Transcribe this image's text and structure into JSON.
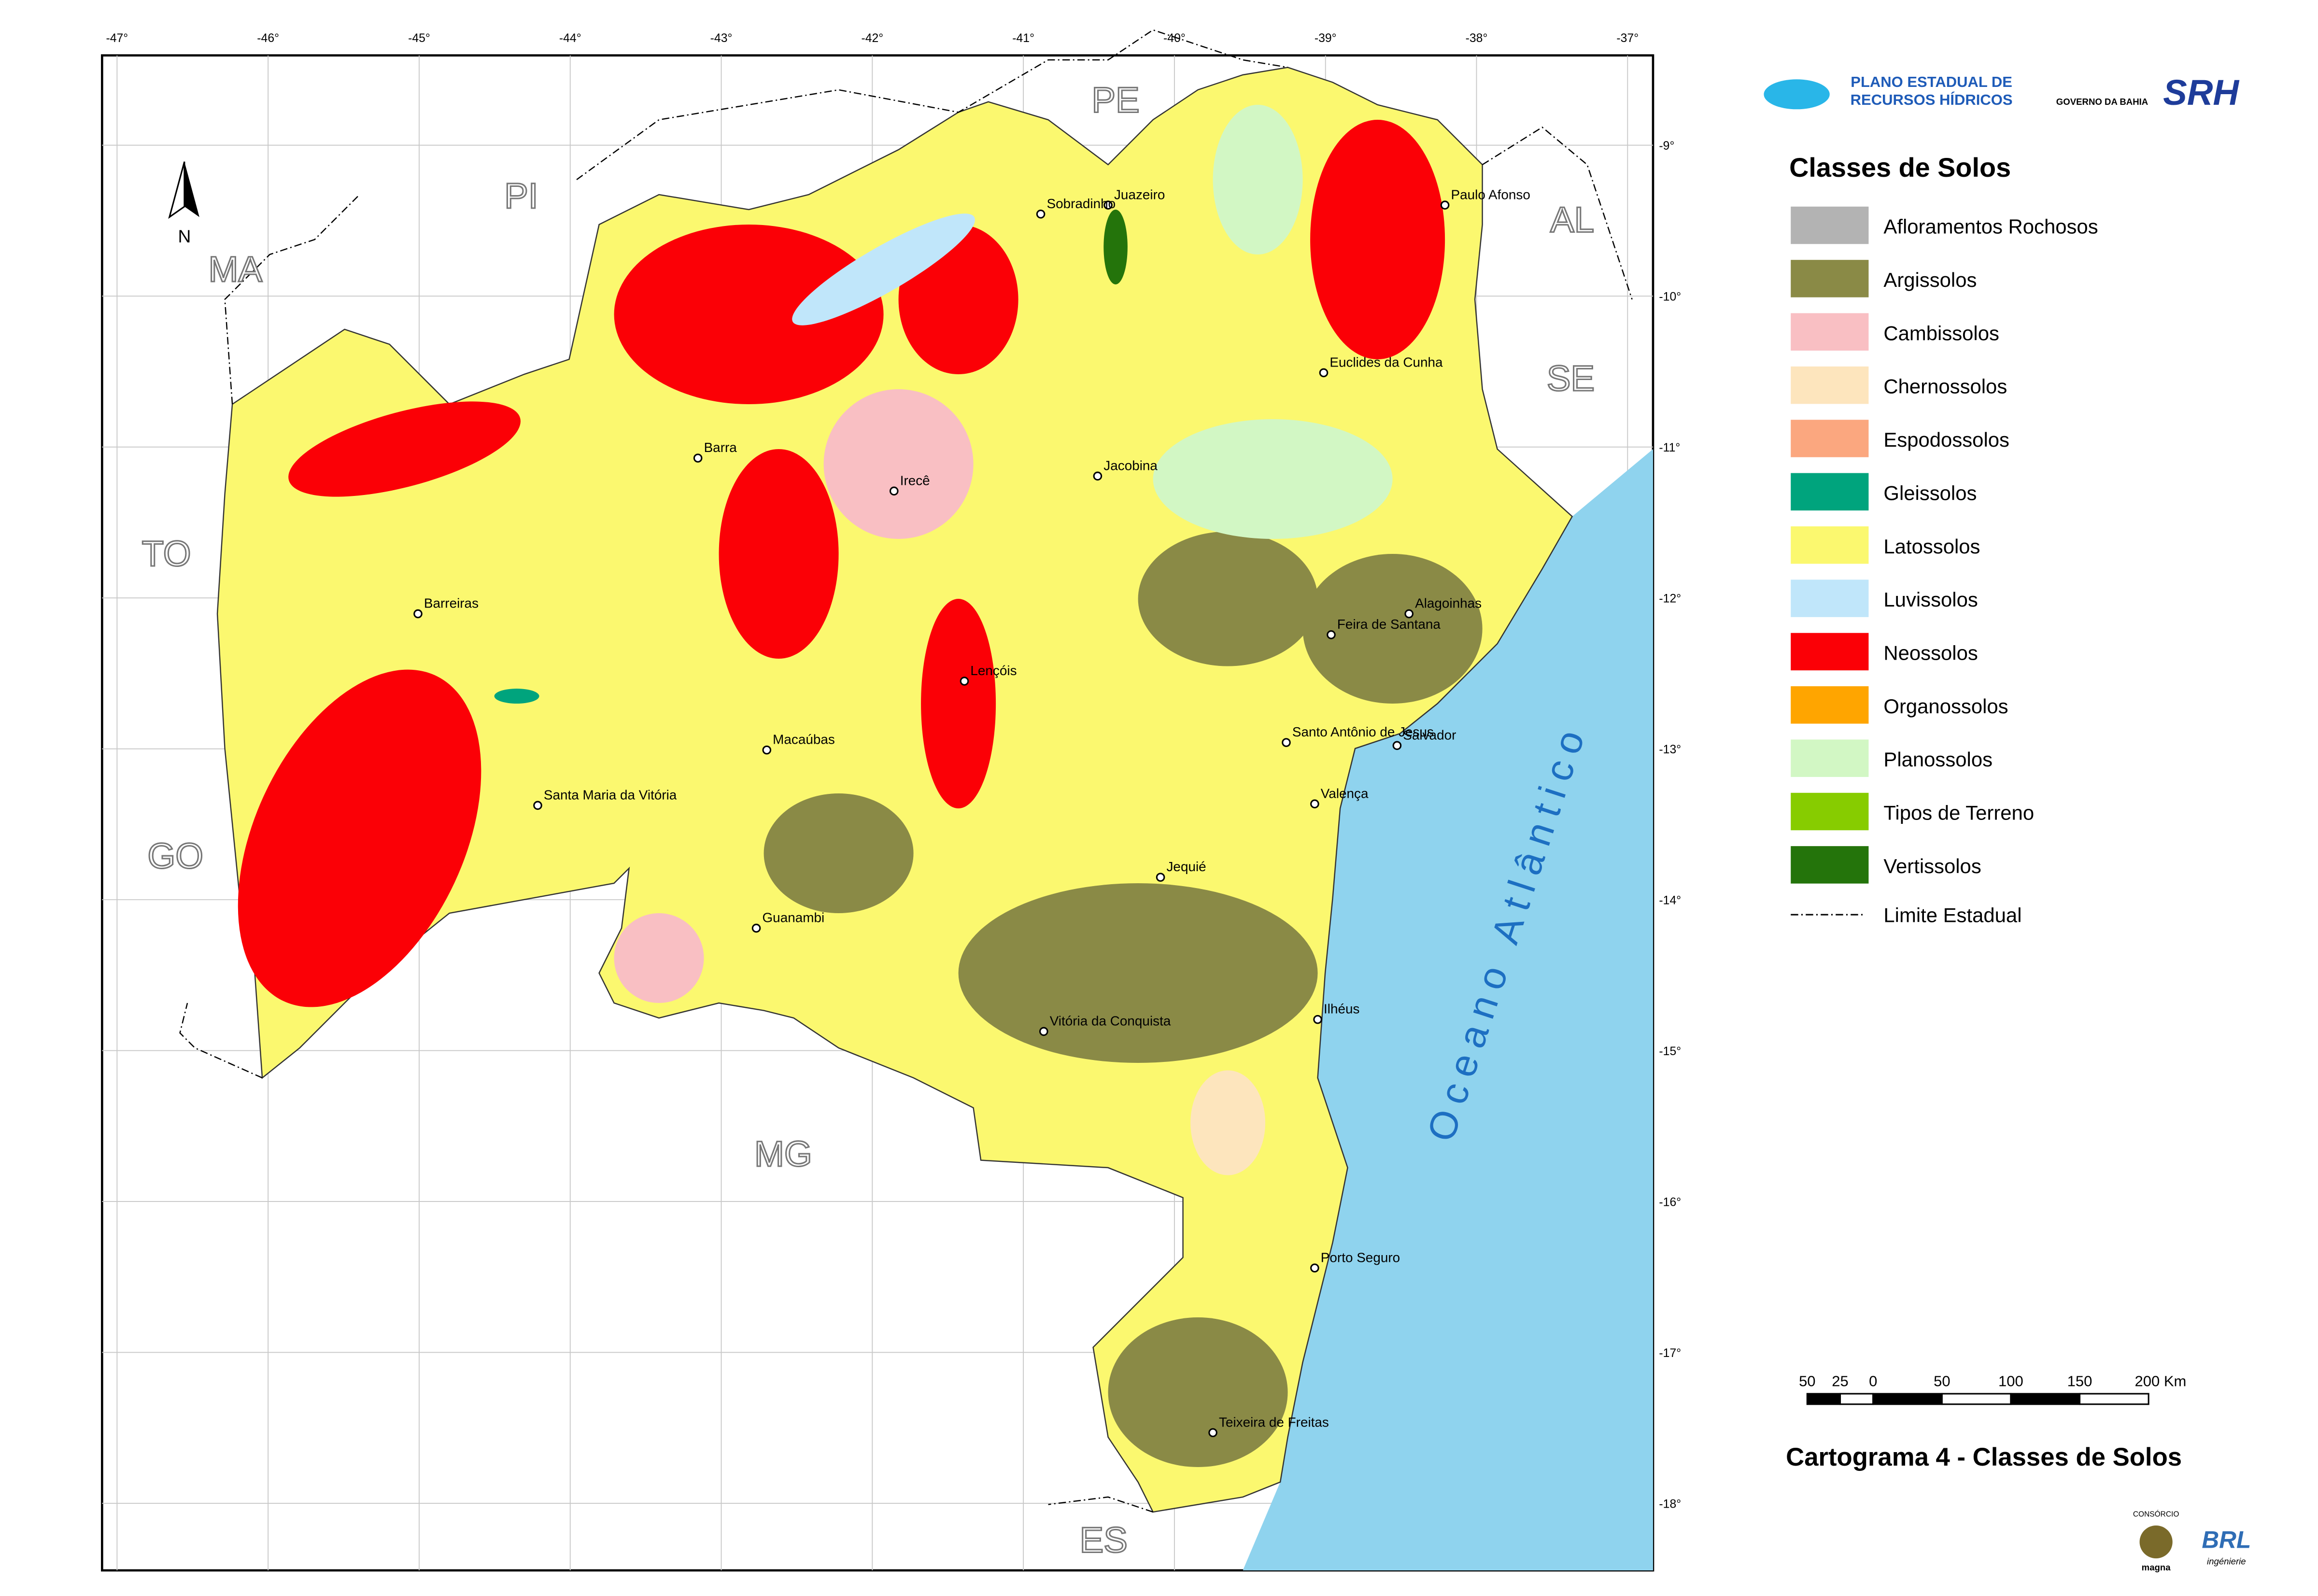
{
  "header": {
    "title_line1": "PLANO ESTADUAL DE",
    "title_line2": "RECURSOS HÍDRICOS",
    "government": "GOVERNO DA BAHIA",
    "agency": "SRH"
  },
  "legend": {
    "title": "Classes de Solos",
    "items": [
      {
        "label": "Afloramentos Rochosos",
        "color": "#b3b3b3"
      },
      {
        "label": "Argissolos",
        "color": "#8a8a46"
      },
      {
        "label": "Cambissolos",
        "color": "#f9bfc3"
      },
      {
        "label": "Chernossolos",
        "color": "#fde5bd"
      },
      {
        "label": "Espodossolos",
        "color": "#fba77f"
      },
      {
        "label": "Gleissolos",
        "color": "#00a47d"
      },
      {
        "label": "Latossolos",
        "color": "#fbf86f"
      },
      {
        "label": "Luvissolos",
        "color": "#c0e6fa"
      },
      {
        "label": "Neossolos",
        "color": "#fb0006"
      },
      {
        "label": "Organossolos",
        "color": "#ffa500"
      },
      {
        "label": "Planossolos",
        "color": "#d2f7c4"
      },
      {
        "label": "Tipos de Terreno",
        "color": "#87cc00"
      },
      {
        "label": "Vertissolos",
        "color": "#24740b"
      }
    ],
    "boundary": "Limite Estadual"
  },
  "map": {
    "lon_ticks": [
      "-47°",
      "-46°",
      "-45°",
      "-44°",
      "-43°",
      "-42°",
      "-41°",
      "-40°",
      "-39°",
      "-38°",
      "-37°"
    ],
    "lat_ticks": [
      "-9°",
      "-10°",
      "-11°",
      "-12°",
      "-13°",
      "-14°",
      "-15°",
      "-16°",
      "-17°",
      "-18°"
    ],
    "states": [
      "PE",
      "PI",
      "MA",
      "AL",
      "SE",
      "TO",
      "GO",
      "MG",
      "ES"
    ],
    "cities": [
      "Juazeiro",
      "Sobradinho",
      "Paulo Afonso",
      "Euclides da Cunha",
      "Barra",
      "Irecê",
      "Jacobina",
      "Barreiras",
      "Feira de Santana",
      "Alagoinhas",
      "Lençóis",
      "Salvador",
      "Santo Antônio de Jesus",
      "Macaúbas",
      "Valença",
      "Santa Maria da Vitória",
      "Jequié",
      "Guanambi",
      "Ilhéus",
      "Vitória da Conquista",
      "Porto Seguro",
      "Teixeira de Freitas"
    ],
    "ocean": "Oceano Atlântico",
    "north": "N"
  },
  "scale": {
    "labels": [
      "50",
      "25",
      "0",
      "50",
      "100",
      "150",
      "200 Km"
    ]
  },
  "caption": "Cartograma 4 - Classes de Solos",
  "consortium": {
    "label": "CONSÓRCIO",
    "partner1": "magna",
    "partner2": "BRL",
    "partner2_sub": "ingénierie"
  }
}
